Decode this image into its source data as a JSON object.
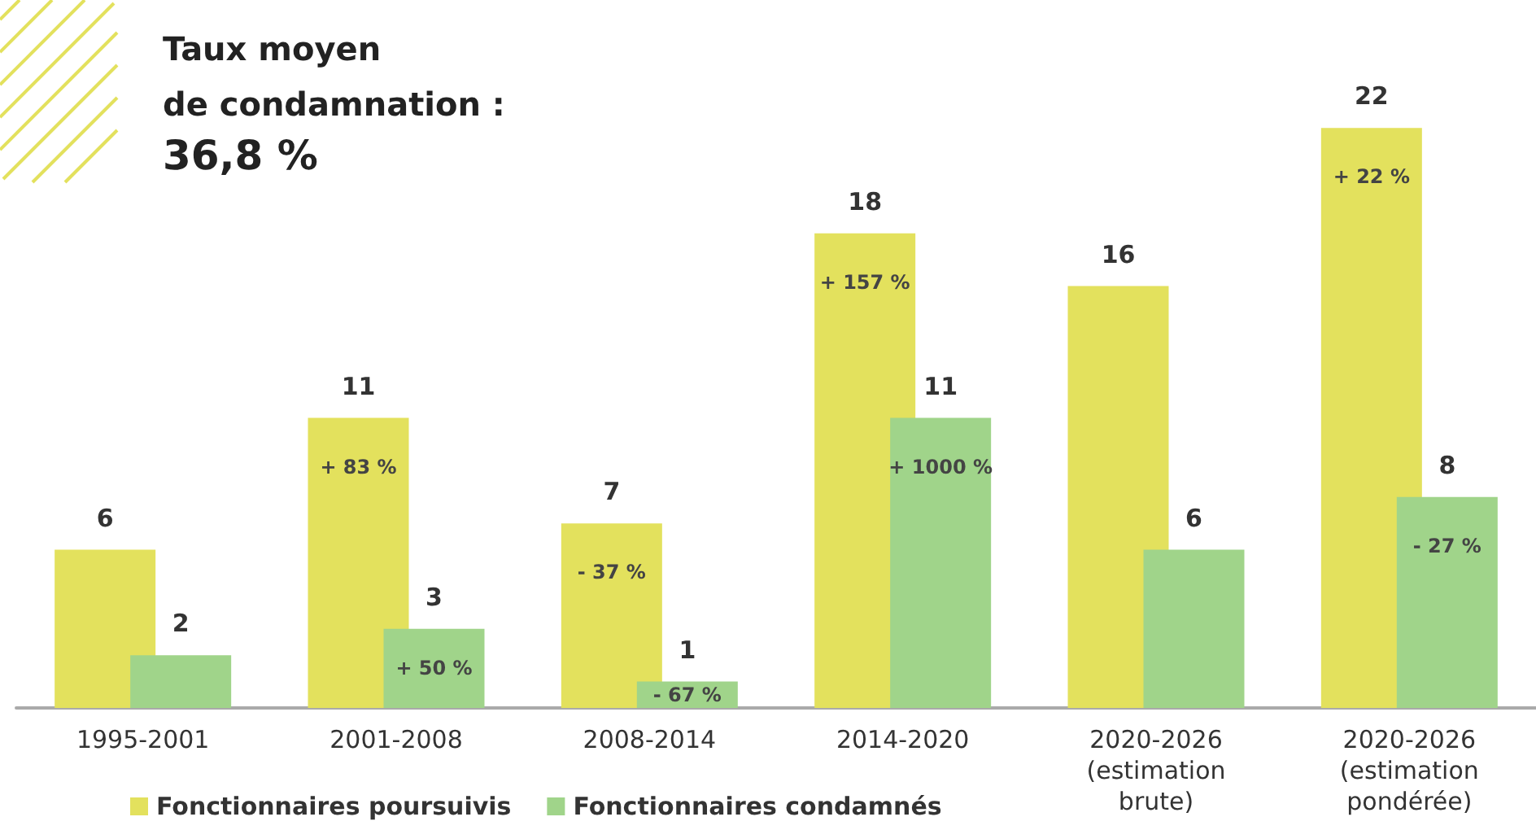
{
  "chart_data": {
    "type": "bar",
    "title": "Taux moyen\nde condamnation :",
    "subtitle": "36,8 %",
    "categories": [
      "1995-2001",
      "2001-2008",
      "2008-2014",
      "2014-2020",
      "2020-2026\n(estimation\nbrute)",
      "2020-2026\n(estimation\npondérée)"
    ],
    "series": [
      {
        "name": "Fonctionnaires poursuivis",
        "color": "#e3e15d",
        "values": [
          6,
          11,
          7,
          18,
          16,
          22
        ]
      },
      {
        "name": "Fonctionnaires condamnés",
        "color": "#a0d48a",
        "values": [
          2,
          3,
          1,
          11,
          6,
          8
        ]
      }
    ],
    "annotations": [
      {
        "text": "+ 83 %",
        "x": "2001-2008",
        "y": 11
      },
      {
        "text": "+ 50 %",
        "x": "2001-2008",
        "y": 3
      },
      {
        "text": "- 37 %",
        "x": "2008-2014",
        "y": 7
      },
      {
        "text": "- 67 %",
        "x": "2008-2014",
        "y": 1
      },
      {
        "text": "+ 157 %",
        "x": "2014-2020",
        "y": 18
      },
      {
        "text": "+ 1000 %",
        "x": "2014-2020",
        "y": 11
      },
      {
        "text": "+ 22 %",
        "x": "2020-2026\n(estimation\npondérée)",
        "y": 22
      },
      {
        "text": "- 27 %",
        "x": "2020-2026\n(estimation\npondérée)",
        "y": 8
      }
    ],
    "data_labels": true,
    "grid": false,
    "legend": "bottom left"
  }
}
